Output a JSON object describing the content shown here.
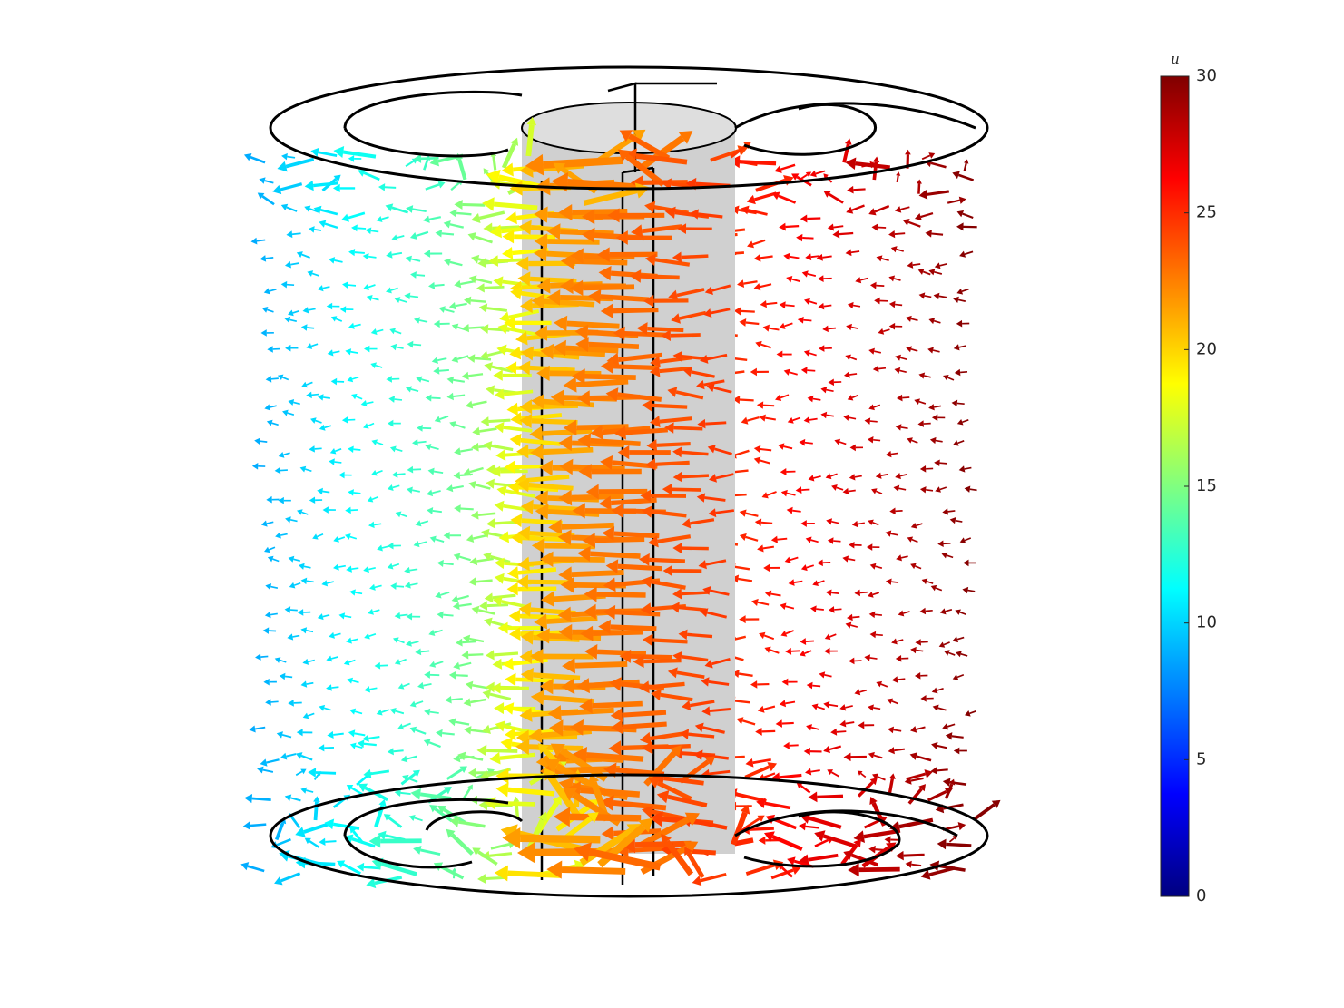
{
  "chart_data": {
    "type": "quiver",
    "colormap": "jet",
    "colorbar": {
      "label": "u",
      "lim": [
        0,
        30
      ],
      "ticks": [
        0,
        5,
        10,
        15,
        20,
        25,
        30
      ]
    }
  }
}
